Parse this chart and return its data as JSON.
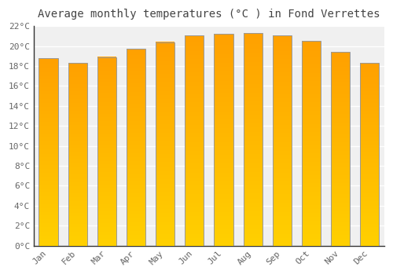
{
  "title": "Average monthly temperatures (°C ) in Fond Verrettes",
  "months": [
    "Jan",
    "Feb",
    "Mar",
    "Apr",
    "May",
    "Jun",
    "Jul",
    "Aug",
    "Sep",
    "Oct",
    "Nov",
    "Dec"
  ],
  "values": [
    18.8,
    18.3,
    18.9,
    19.7,
    20.4,
    21.1,
    21.2,
    21.3,
    21.1,
    20.5,
    19.4,
    18.3
  ],
  "ylim": [
    0,
    22
  ],
  "ytick_step": 2,
  "background_color": "#ffffff",
  "plot_bg_color": "#f0f0f0",
  "grid_color": "#ffffff",
  "bar_color_bottom": "#FFD000",
  "bar_color_top": "#FFA000",
  "bar_edge_color": "#999999",
  "title_fontsize": 10,
  "tick_fontsize": 8,
  "bar_width": 0.65
}
